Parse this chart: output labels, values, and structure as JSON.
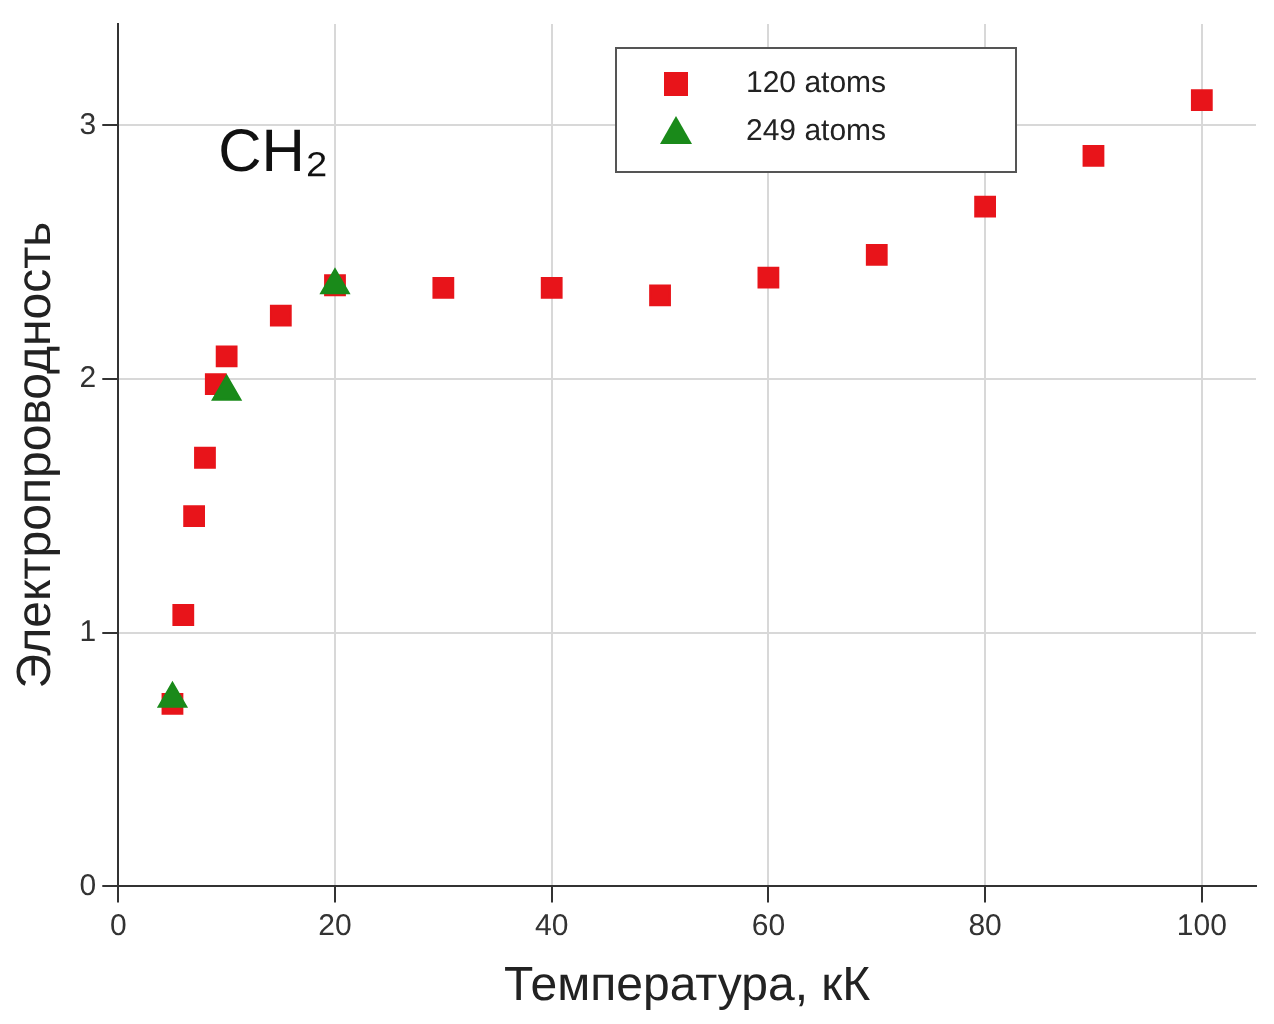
{
  "chart_data": {
    "type": "scatter",
    "xlabel": "Температура, кК",
    "ylabel": "Электропроводность",
    "annotations": [
      "CH₂"
    ],
    "xlim": [
      0,
      105
    ],
    "xticks": [
      0,
      20,
      40,
      60,
      80,
      100
    ],
    "ylim": [
      0,
      3.4
    ],
    "yticks": [
      0,
      1,
      2,
      3
    ],
    "grid": true,
    "legend": "top right",
    "series": [
      {
        "name": "120 atoms",
        "color": "#e8141a",
        "marker": "square",
        "x": [
          5,
          6,
          7,
          8,
          9,
          10,
          15,
          20,
          30,
          40,
          50,
          60,
          70,
          80,
          90,
          100
        ],
        "values": [
          0.72,
          1.07,
          1.46,
          1.69,
          1.98,
          2.09,
          2.25,
          2.37,
          2.36,
          2.36,
          2.33,
          2.4,
          2.49,
          2.68,
          2.88,
          3.1
        ]
      },
      {
        "name": "249 atoms",
        "color": "#1a8a1a",
        "marker": "triangle",
        "x": [
          5,
          10,
          20
        ],
        "values": [
          0.74,
          1.95,
          2.37
        ]
      }
    ]
  }
}
